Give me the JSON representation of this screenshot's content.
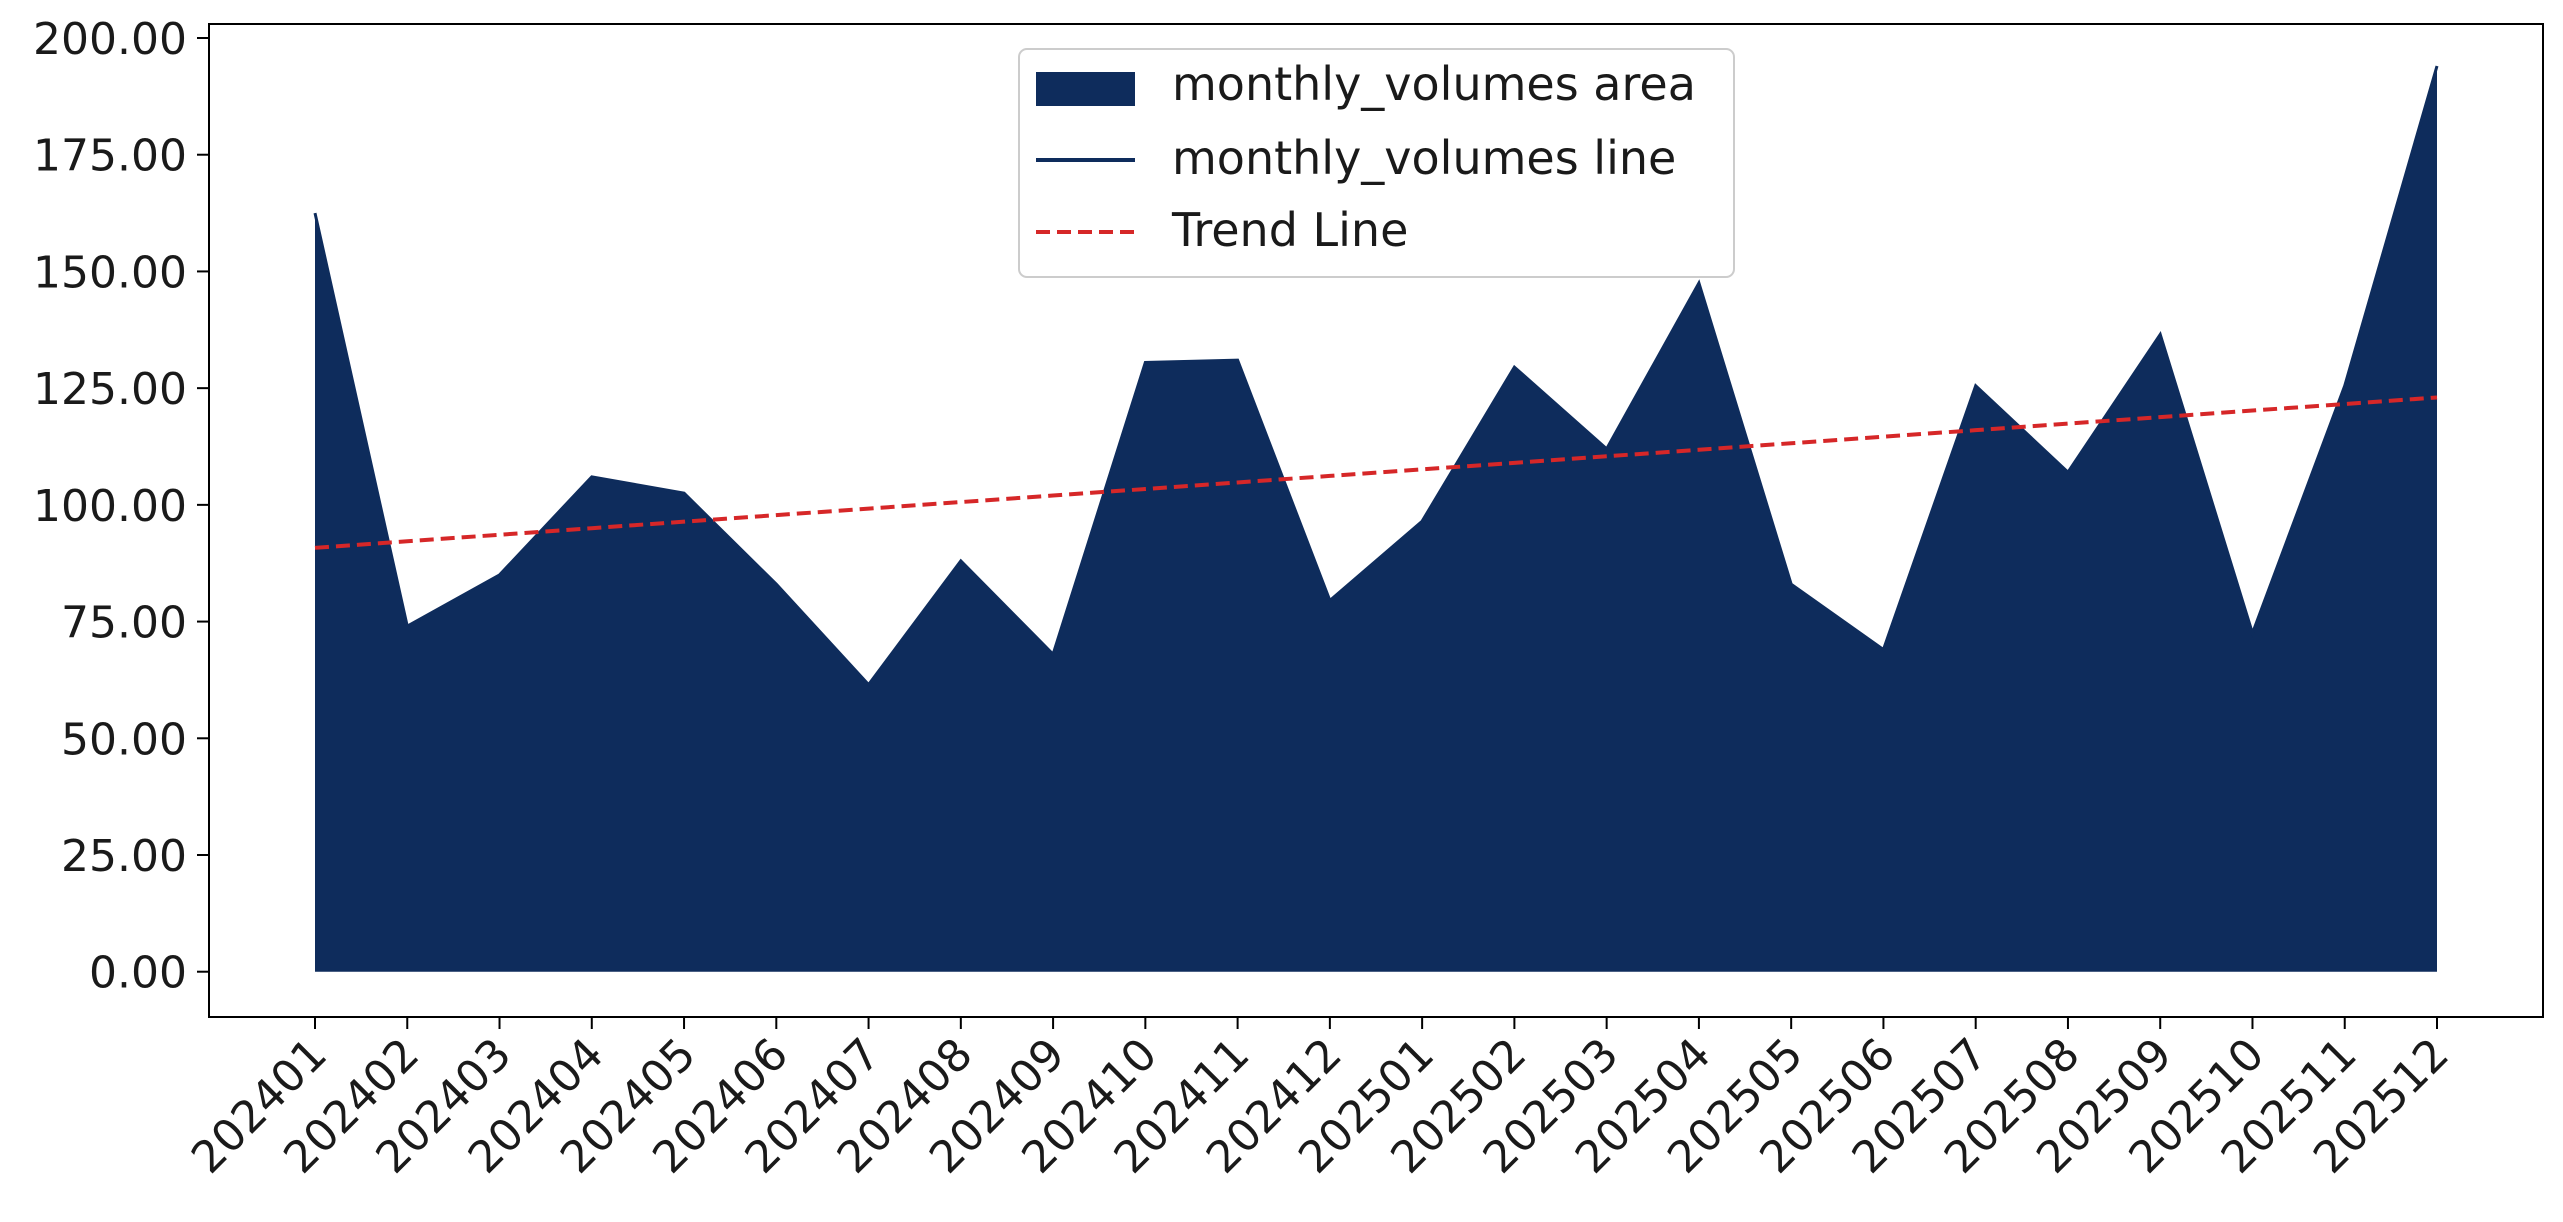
{
  "chart_data": {
    "type": "area",
    "title": "",
    "xlabel": "",
    "ylabel": "",
    "categories": [
      "202401",
      "202402",
      "202403",
      "202404",
      "202405",
      "202406",
      "202407",
      "202408",
      "202409",
      "202410",
      "202411",
      "202412",
      "202501",
      "202502",
      "202503",
      "202504",
      "202505",
      "202506",
      "202507",
      "202508",
      "202509",
      "202510",
      "202511",
      "202512"
    ],
    "series": [
      {
        "name": "monthly_volumes area",
        "kind": "area",
        "color": "#0e2c5c",
        "values": [
          162.5,
          74.0,
          85.0,
          106.0,
          102.5,
          83.0,
          61.5,
          88.0,
          68.0,
          130.5,
          131.0,
          79.5,
          96.5,
          129.5,
          112.0,
          147.5,
          83.0,
          69.0,
          125.5,
          107.0,
          136.5,
          72.5,
          125.5,
          194.0
        ]
      },
      {
        "name": "monthly_volumes line",
        "kind": "line",
        "color": "#0e2c5c",
        "values": [
          162.5,
          74.0,
          85.0,
          106.0,
          102.5,
          83.0,
          61.5,
          88.0,
          68.0,
          130.5,
          131.0,
          79.5,
          96.5,
          129.5,
          112.0,
          147.5,
          83.0,
          69.0,
          125.5,
          107.0,
          136.5,
          72.5,
          125.5,
          194.0
        ]
      },
      {
        "name": "Trend Line",
        "kind": "line",
        "style": "dashed",
        "color": "#d62728",
        "values": [
          90.8,
          92.2,
          93.6,
          95.0,
          96.4,
          97.8,
          99.2,
          100.6,
          102.0,
          103.4,
          104.8,
          106.2,
          107.6,
          109.0,
          110.4,
          111.8,
          113.2,
          114.6,
          116.0,
          117.4,
          118.8,
          120.2,
          121.6,
          123.0
        ]
      }
    ],
    "yticks": [
      "0.00",
      "25.00",
      "50.00",
      "75.00",
      "100.00",
      "125.00",
      "150.00",
      "175.00",
      "200.00"
    ],
    "ylim": [
      -9.7,
      203.0
    ],
    "grid": false,
    "legend_position": "top-center"
  }
}
